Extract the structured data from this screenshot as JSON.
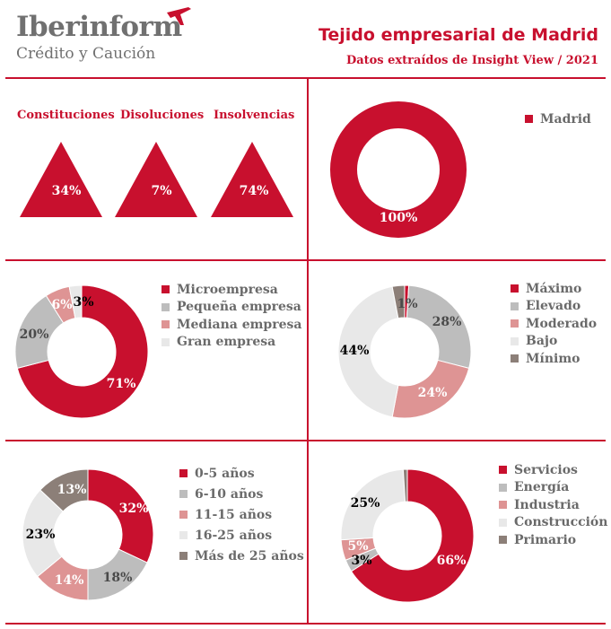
{
  "header": {
    "logo_main": "Iberinform",
    "logo_sub": "Crédito y Caución",
    "title": "Tejido empresarial de Madrid",
    "subtitle": "Datos extraídos de Insight View / 2021"
  },
  "colors": {
    "brand_red": "#c8102e",
    "red": "#c8102e",
    "grey": "#bdbdbd",
    "pink": "#de9494",
    "light": "#e8e8e8",
    "brown": "#8c7f78"
  },
  "chart_data": [
    {
      "type": "bar",
      "title": "",
      "categories": [
        "Constituciones",
        "Disoluciones",
        "Insolvencias"
      ],
      "values": [
        34,
        7,
        74
      ],
      "value_labels": [
        "34%",
        "7%",
        "74%"
      ],
      "unit": "%"
    },
    {
      "type": "pie",
      "donut": true,
      "legend": "top-right",
      "categories": [
        "Madrid"
      ],
      "values": [
        100
      ],
      "value_labels": [
        "100%"
      ],
      "colors": [
        "#c8102e"
      ]
    },
    {
      "type": "pie",
      "donut": true,
      "legend": "right",
      "categories": [
        "Microempresa",
        "Pequeña empresa",
        "Mediana empresa",
        "Gran empresa"
      ],
      "values": [
        71,
        20,
        6,
        3
      ],
      "value_labels": [
        "71%",
        "20%",
        "6%",
        "3%"
      ],
      "colors": [
        "#c8102e",
        "#bdbdbd",
        "#de9494",
        "#e8e8e8"
      ]
    },
    {
      "type": "pie",
      "donut": true,
      "legend": "top-right",
      "categories": [
        "Máximo",
        "Elevado",
        "Moderado",
        "Bajo",
        "Mínimo"
      ],
      "values": [
        1,
        28,
        24,
        44,
        3
      ],
      "value_labels": [
        "1%",
        "28%",
        "24%",
        "44%",
        ""
      ],
      "colors": [
        "#c8102e",
        "#bdbdbd",
        "#de9494",
        "#e8e8e8",
        "#8c7f78"
      ]
    },
    {
      "type": "pie",
      "donut": true,
      "legend": "right",
      "categories": [
        "0-5 años",
        "6-10 años",
        "11-15 años",
        "16-25 años",
        "Más de 25 años"
      ],
      "values": [
        32,
        18,
        14,
        23,
        13
      ],
      "value_labels": [
        "32%",
        "18%",
        "14%",
        "23%",
        "13%"
      ],
      "colors": [
        "#c8102e",
        "#bdbdbd",
        "#de9494",
        "#e8e8e8",
        "#8c7f78"
      ]
    },
    {
      "type": "pie",
      "donut": true,
      "legend": "top-right",
      "categories": [
        "Servicios",
        "Energía",
        "Industria",
        "Construcción",
        "Primario"
      ],
      "values": [
        66,
        3,
        5,
        25,
        1
      ],
      "value_labels": [
        "66%",
        "3%",
        "5%",
        "25%",
        ""
      ],
      "colors": [
        "#c8102e",
        "#bdbdbd",
        "#de9494",
        "#e8e8e8",
        "#8c7f78"
      ]
    }
  ]
}
